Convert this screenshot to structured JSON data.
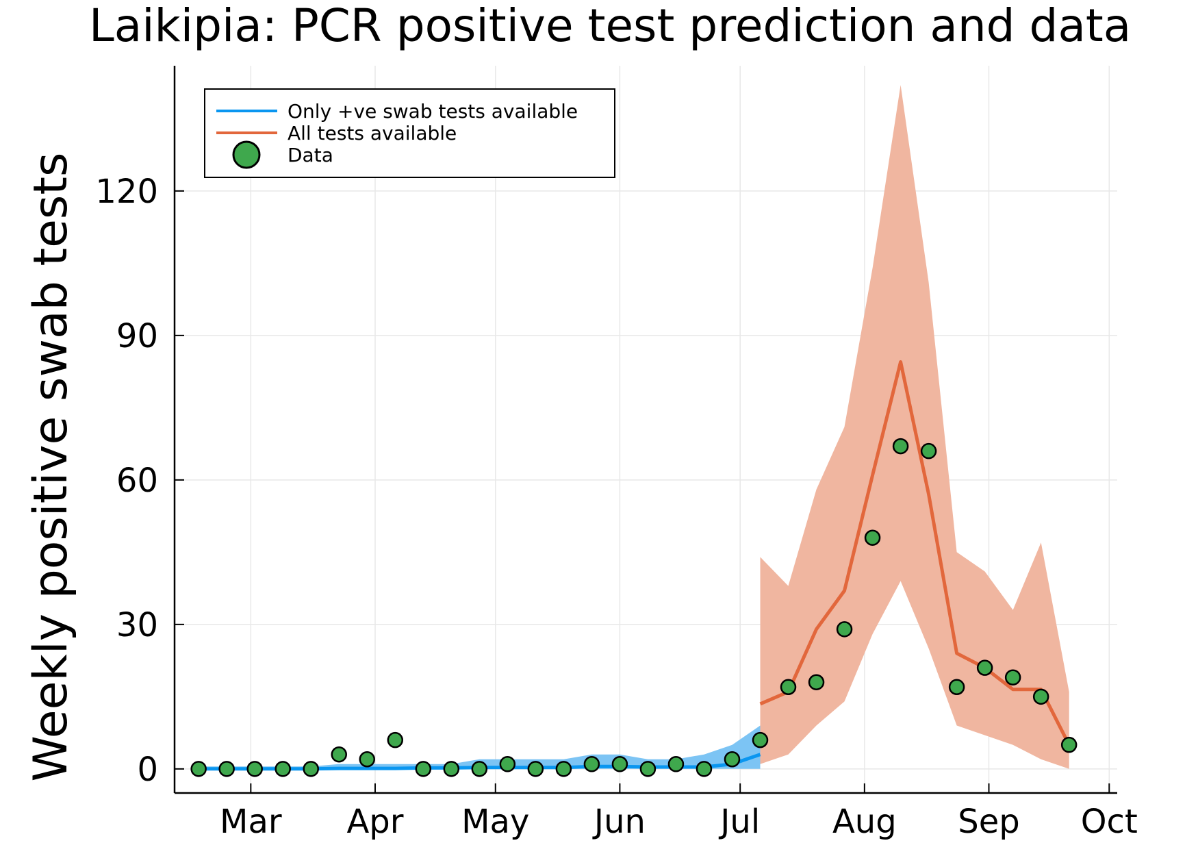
{
  "colors": {
    "blue": "#0a96f0",
    "blue_band": "#7cc4f4",
    "orange": "#e2673c",
    "orange_band": "#f0b6a0",
    "green": "#3fa84d",
    "grid": "#e8e8e8"
  },
  "chart_data": {
    "type": "line",
    "title": "Laikipia: PCR positive test prediction and data",
    "xlabel": "",
    "ylabel": "Weekly positive swab tests",
    "xlim": [
      "2021-02-10",
      "2021-10-03"
    ],
    "ylim": [
      -5,
      146
    ],
    "yticks": [
      0,
      30,
      60,
      90,
      120
    ],
    "yticklabels": [
      "0",
      "30",
      "60",
      "90",
      "120"
    ],
    "xticks": [
      "2021-03-01",
      "2021-04-01",
      "2021-05-01",
      "2021-06-01",
      "2021-07-01",
      "2021-08-01",
      "2021-09-01",
      "2021-10-01"
    ],
    "xticklabels": [
      "Mar",
      "Apr",
      "May",
      "Jun",
      "Jul",
      "Aug",
      "Sep",
      "Oct"
    ],
    "grid": true,
    "legend_position": "top-left",
    "series": [
      {
        "name": "Only +ve swab tests available",
        "kind": "line",
        "color": "#0a96f0",
        "x": [
          "2021-02-16",
          "2021-02-23",
          "2021-03-02",
          "2021-03-09",
          "2021-03-16",
          "2021-03-23",
          "2021-03-30",
          "2021-04-06",
          "2021-04-13",
          "2021-04-20",
          "2021-04-27",
          "2021-05-04",
          "2021-05-11",
          "2021-05-18",
          "2021-05-25",
          "2021-06-01",
          "2021-06-08",
          "2021-06-15",
          "2021-06-22",
          "2021-06-29",
          "2021-07-06"
        ],
        "y": [
          0,
          0,
          0,
          0,
          0,
          0.1,
          0.1,
          0.1,
          0.2,
          0.2,
          0.3,
          0.3,
          0.3,
          0.3,
          0.5,
          0.5,
          0.4,
          0.4,
          0.4,
          1.0,
          3.0
        ],
        "lower": [
          0,
          0,
          0,
          0,
          0,
          0,
          0,
          0,
          0,
          0,
          0,
          0,
          0,
          0,
          0,
          0,
          0,
          0,
          0,
          0,
          0
        ],
        "upper": [
          0.5,
          0.5,
          0.5,
          0.5,
          0.5,
          1,
          1,
          1,
          1,
          1,
          2,
          2,
          2,
          2,
          3,
          3,
          2,
          2,
          3,
          5,
          9
        ]
      },
      {
        "name": "All tests available",
        "kind": "line",
        "color": "#e2673c",
        "x": [
          "2021-07-06",
          "2021-07-13",
          "2021-07-20",
          "2021-07-27",
          "2021-08-03",
          "2021-08-10",
          "2021-08-17",
          "2021-08-24",
          "2021-08-31",
          "2021-09-07",
          "2021-09-14",
          "2021-09-21"
        ],
        "y": [
          13.5,
          16,
          29,
          37,
          61,
          84.5,
          57,
          24,
          21,
          16.5,
          16.5,
          5
        ],
        "lower": [
          1,
          3,
          9,
          14,
          28,
          39,
          25,
          9,
          7,
          5,
          2,
          0
        ],
        "upper": [
          44,
          38,
          58,
          71,
          104,
          142,
          101,
          45,
          41,
          33,
          47,
          16
        ]
      },
      {
        "name": "Data",
        "kind": "scatter",
        "color": "#3fa84d",
        "x": [
          "2021-02-16",
          "2021-02-23",
          "2021-03-02",
          "2021-03-09",
          "2021-03-16",
          "2021-03-23",
          "2021-03-30",
          "2021-04-06",
          "2021-04-13",
          "2021-04-20",
          "2021-04-27",
          "2021-05-04",
          "2021-05-11",
          "2021-05-18",
          "2021-05-25",
          "2021-06-01",
          "2021-06-08",
          "2021-06-15",
          "2021-06-22",
          "2021-06-29",
          "2021-07-06",
          "2021-07-13",
          "2021-07-20",
          "2021-07-27",
          "2021-08-03",
          "2021-08-10",
          "2021-08-17",
          "2021-08-24",
          "2021-08-31",
          "2021-09-07",
          "2021-09-14",
          "2021-09-21"
        ],
        "y": [
          0,
          0,
          0,
          0,
          0,
          3,
          2,
          6,
          0,
          0,
          0,
          1,
          0,
          0,
          1,
          1,
          0,
          1,
          0,
          2,
          6,
          17,
          18,
          29,
          48,
          67,
          66,
          17,
          21,
          19,
          15,
          5
        ]
      }
    ]
  }
}
